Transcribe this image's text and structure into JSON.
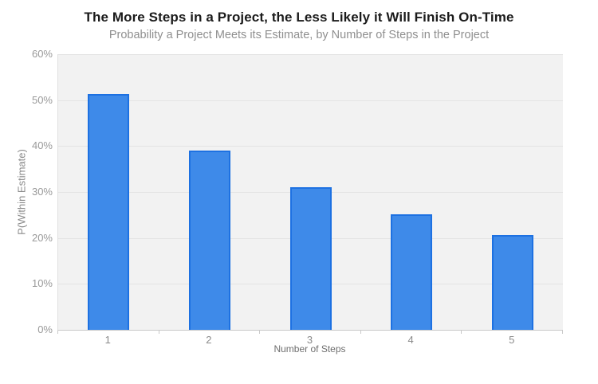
{
  "chart_data": {
    "type": "bar",
    "title": "The More Steps in a Project, the Less Likely it Will Finish On-Time",
    "subtitle": "Probability a Project Meets its Estimate, by Number of Steps in the Project",
    "xlabel": "Number of Steps",
    "ylabel": "P(Within Estimate)",
    "categories": [
      "1",
      "2",
      "3",
      "4",
      "5"
    ],
    "values": [
      51.3,
      39.0,
      31.1,
      25.1,
      20.7
    ],
    "ylim": [
      0,
      60
    ],
    "ytick_step": 10,
    "ytick_labels": [
      "0%",
      "10%",
      "20%",
      "30%",
      "40%",
      "50%",
      "60%"
    ],
    "grid": true,
    "legend": "none",
    "colors": {
      "bar_fill": "#3e8ae9",
      "bar_border": "#1d71e2",
      "plot_background": "#f2f2f2",
      "gridline": "#e4e4e4",
      "axis_tick": "#c9c9c9",
      "title_text": "#1b1b1b",
      "subtitle_text": "#8f8f8f",
      "tick_text": "#999999",
      "axis_title_text": "#6e6e6e"
    }
  }
}
